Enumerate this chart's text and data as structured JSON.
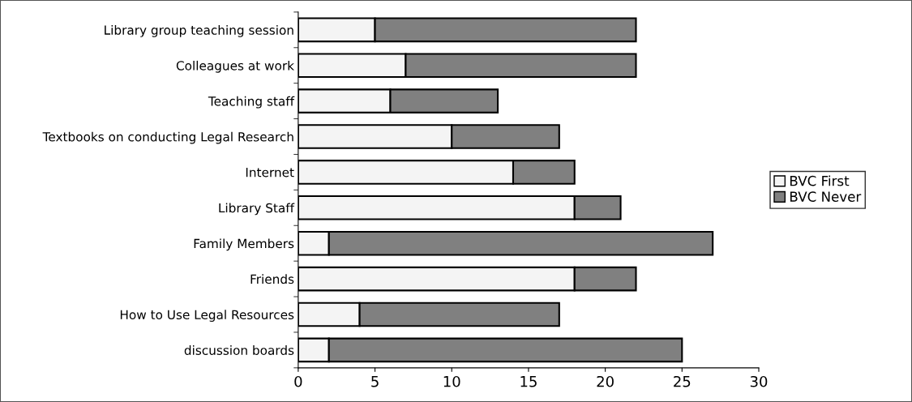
{
  "chart_data": {
    "type": "bar",
    "orientation": "horizontal",
    "stacked": true,
    "categories": [
      "Library group teaching session",
      "Colleagues at work",
      "Teaching staff",
      "Textbooks on conducting Legal Research",
      "Internet",
      "Library Staff",
      "Family Members",
      "Friends",
      "How to Use Legal Resources",
      "discussion boards"
    ],
    "series": [
      {
        "name": "BVC First",
        "color": "#f4f4f4",
        "values": [
          5,
          7,
          6,
          10,
          14,
          18,
          2,
          18,
          4,
          2
        ]
      },
      {
        "name": "BVC Never",
        "color": "#808080",
        "values": [
          17,
          15,
          7,
          7,
          4,
          3,
          25,
          4,
          13,
          23
        ]
      }
    ],
    "xlim": [
      0,
      30
    ],
    "xticks": [
      0,
      5,
      10,
      15,
      20,
      25,
      30
    ],
    "grid": false,
    "legend": "right"
  }
}
